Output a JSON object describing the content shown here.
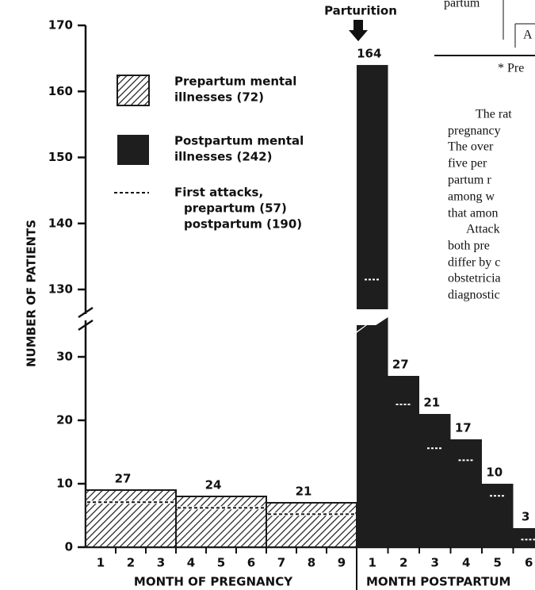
{
  "chart_data": {
    "type": "bar",
    "annotation": "Parturition",
    "y_label": "NUMBER OF PATIENTS",
    "ylim": [
      0,
      170
    ],
    "ybreak": [
      35,
      127
    ],
    "yticks": [
      0,
      10,
      20,
      30,
      130,
      140,
      150,
      160,
      170
    ],
    "pregnancy_months": [
      "1",
      "2",
      "3",
      "4",
      "5",
      "6",
      "7",
      "8",
      "9"
    ],
    "postpartum_months": [
      "1",
      "2",
      "3",
      "4",
      "5",
      "6"
    ],
    "pregnancy_label": "MONTH OF PREGNANCY",
    "postpartum_label": "MONTH POSTPARTUM",
    "series": [
      {
        "name_lines": [
          "Prepartum mental",
          "illnesses (72)"
        ],
        "color": "#1a1a1a",
        "pattern": "hatch",
        "values": [
          9,
          8,
          7
        ],
        "totals": [
          27,
          24,
          21
        ]
      },
      {
        "name_lines": [
          "Postpartum mental",
          "illnesses (242)"
        ],
        "color": "#1e1e1e",
        "values": [
          164,
          27,
          21,
          17,
          10,
          3
        ]
      },
      {
        "name_lines": [
          "First attacks,",
          "prepartum (57)",
          "postpartum (190)"
        ],
        "style": "dashed",
        "prepartum_values": [
          7.1,
          6.2,
          5.2
        ],
        "postpartum_values": [
          131.5,
          22.5,
          15.6,
          13.7,
          8.1,
          1.2
        ]
      }
    ]
  },
  "page_text": [
    "partum",
    "A",
    "* Pre",
    "The rat",
    "pregnancy",
    "The over",
    "five per",
    "partum   r",
    "among w",
    "that amon",
    "Attack",
    "both pre",
    "differ by c",
    "obstetricia",
    "diagnostic"
  ]
}
